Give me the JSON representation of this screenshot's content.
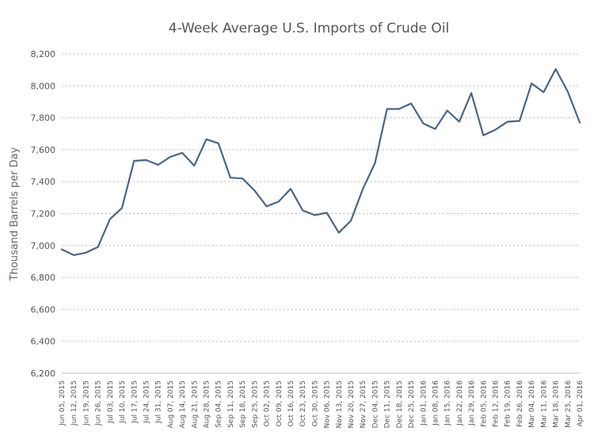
{
  "chart_data": {
    "type": "line",
    "title": "4-Week Average U.S. Imports of Crude Oil",
    "ylabel": "Thousand Barrels per Day",
    "xlabel": "",
    "ylim": [
      6200,
      8200
    ],
    "yticks": [
      6200,
      6400,
      6600,
      6800,
      7000,
      7200,
      7400,
      7600,
      7800,
      8000,
      8200
    ],
    "ytick_labels": [
      "6,200",
      "6,400",
      "6,600",
      "6,800",
      "7,000",
      "7,200",
      "7,400",
      "7,600",
      "7,800",
      "8,000",
      "8,200"
    ],
    "grid": true,
    "line_color": "#4a6584",
    "categories": [
      "Jun 05, 2015",
      "Jun 12, 2015",
      "Jun 19, 2015",
      "Jun 26, 2015",
      "Jul 03, 2015",
      "Jul 10, 2015",
      "Jul 17, 2015",
      "Jul 24, 2015",
      "Jul 31, 2015",
      "Aug 07, 2015",
      "Aug 14, 2015",
      "Aug 21, 2015",
      "Aug 28, 2015",
      "Sep 04, 2015",
      "Sep 11, 2015",
      "Sep 18, 2015",
      "Sep 25, 2015",
      "Oct 02, 2015",
      "Oct 09, 2015",
      "Oct 16, 2015",
      "Oct 23, 2015",
      "Oct 30, 2015",
      "Nov 06, 2015",
      "Nov 13, 2015",
      "Nov 20, 2015",
      "Nov 27, 2015",
      "Dec 04, 2015",
      "Dec 11, 2015",
      "Dec 18, 2015",
      "Dec 25, 2015",
      "Jan 01, 2016",
      "Jan 08, 2016",
      "Jan 15, 2016",
      "Jan 22, 2016",
      "Jan 29, 2016",
      "Feb 05, 2016",
      "Feb 12, 2016",
      "Feb 19, 2016",
      "Feb 26, 2016",
      "Mar 04, 2016",
      "Mar 11, 2016",
      "Mar 18, 2016",
      "Mar 25, 2016",
      "Apr 01, 2016"
    ],
    "series": [
      {
        "values": [
          6975,
          6940,
          6955,
          6990,
          7165,
          7235,
          7530,
          7535,
          7505,
          7555,
          7580,
          7500,
          7665,
          7640,
          7425,
          7420,
          7345,
          7245,
          7275,
          7355,
          7220,
          7190,
          7205,
          7080,
          7155,
          7355,
          7515,
          7855,
          7855,
          7890,
          7765,
          7730,
          7845,
          7775,
          7955,
          7690,
          7725,
          7775,
          7780,
          8015,
          7960,
          8105,
          7965,
          7770
        ]
      }
    ]
  }
}
